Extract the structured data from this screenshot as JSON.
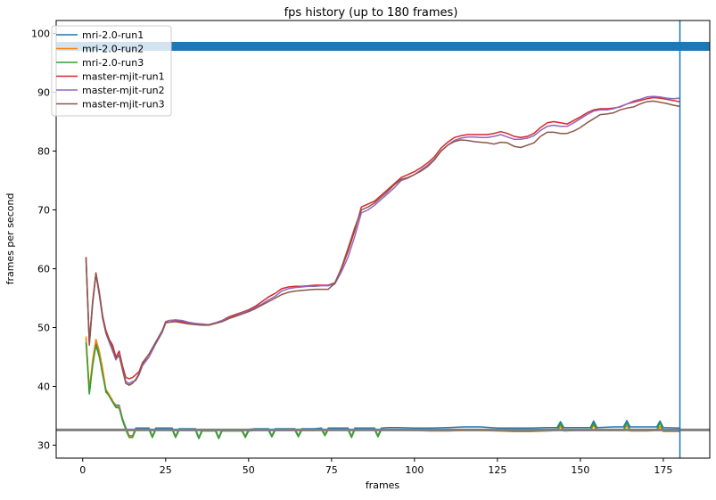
{
  "chart_data": {
    "type": "line",
    "title": "fps history (up to 180 frames)",
    "xlabel": "frames",
    "ylabel": "frames per second",
    "xlim": [
      -8,
      189
    ],
    "ylim": [
      27.8,
      102.2
    ],
    "xticks": [
      0,
      25,
      50,
      75,
      100,
      125,
      150,
      175
    ],
    "yticks": [
      30,
      40,
      50,
      60,
      70,
      80,
      90,
      100
    ],
    "grid": false,
    "legend_position": "top-left",
    "reference_lines": [
      {
        "orientation": "horizontal",
        "y": 97.8,
        "color": "#1f77b4",
        "style": "thick band"
      },
      {
        "orientation": "horizontal",
        "y": 32.6,
        "color": "#7f7f7f",
        "style": "thick line"
      },
      {
        "orientation": "vertical",
        "x": 180,
        "color": "#1f77b4",
        "style": "thin line"
      }
    ],
    "series": [
      {
        "name": "mri-2.0-run1",
        "color": "#1f77b4",
        "x": [
          1,
          2,
          3,
          4,
          5,
          6,
          7,
          8,
          9,
          10,
          11,
          12,
          13,
          14,
          15,
          16,
          18,
          20,
          21,
          22,
          24,
          26,
          27,
          28,
          29,
          31,
          33,
          34,
          35,
          36,
          38,
          40,
          41,
          42,
          44,
          46,
          48,
          49,
          50,
          52,
          54,
          56,
          57,
          58,
          60,
          62,
          64,
          65,
          66,
          68,
          70,
          72,
          73,
          74,
          76,
          78,
          80,
          81,
          82,
          84,
          86,
          88,
          89,
          90,
          92,
          95,
          100,
          105,
          110,
          115,
          120,
          125,
          130,
          135,
          140,
          143,
          144,
          145,
          150,
          153,
          154,
          155,
          160,
          163,
          164,
          165,
          170,
          173,
          174,
          175,
          180
        ],
        "values": [
          48.0,
          38.8,
          44.0,
          47.5,
          45.5,
          42.5,
          39.0,
          38.5,
          37.5,
          36.8,
          36.8,
          34.5,
          33.0,
          31.6,
          31.6,
          32.9,
          32.9,
          32.9,
          31.5,
          32.9,
          32.9,
          32.9,
          32.9,
          31.5,
          32.8,
          32.8,
          32.8,
          32.8,
          31.3,
          32.7,
          32.7,
          32.7,
          31.3,
          32.7,
          32.7,
          32.7,
          32.7,
          31.5,
          32.7,
          32.8,
          32.8,
          32.8,
          31.6,
          32.8,
          32.8,
          32.8,
          32.8,
          31.6,
          32.8,
          32.8,
          32.8,
          32.9,
          31.8,
          32.9,
          32.9,
          32.9,
          32.9,
          31.5,
          32.9,
          32.9,
          32.9,
          32.9,
          31.6,
          32.9,
          33.0,
          33.0,
          32.9,
          32.9,
          33.0,
          33.1,
          33.1,
          32.9,
          32.9,
          32.9,
          33.0,
          33.0,
          34.0,
          33.0,
          33.0,
          33.0,
          34.1,
          33.0,
          33.1,
          33.1,
          34.2,
          33.1,
          33.1,
          33.1,
          34.1,
          33.0,
          32.9
        ]
      },
      {
        "name": "mri-2.0-run2",
        "color": "#ff7f0e",
        "x": [
          1,
          2,
          3,
          4,
          5,
          6,
          7,
          8,
          9,
          10,
          11,
          12,
          13,
          14,
          15,
          16,
          18,
          20,
          21,
          22,
          24,
          26,
          27,
          28,
          29,
          31,
          33,
          34,
          35,
          36,
          38,
          40,
          41,
          42,
          44,
          46,
          48,
          49,
          50,
          52,
          54,
          56,
          57,
          58,
          60,
          62,
          64,
          65,
          66,
          68,
          70,
          72,
          73,
          74,
          76,
          78,
          80,
          81,
          82,
          84,
          86,
          88,
          89,
          90,
          92,
          95,
          100,
          105,
          110,
          115,
          120,
          125,
          130,
          135,
          140,
          143,
          144,
          145,
          150,
          153,
          154,
          155,
          160,
          163,
          164,
          165,
          170,
          173,
          174,
          175,
          180
        ],
        "values": [
          48.5,
          39.5,
          44.5,
          48.0,
          46.0,
          43.0,
          39.5,
          38.6,
          37.6,
          36.5,
          36.6,
          34.3,
          32.8,
          31.5,
          31.5,
          32.7,
          32.7,
          32.7,
          31.4,
          32.7,
          32.7,
          32.7,
          32.7,
          31.4,
          32.6,
          32.6,
          32.6,
          32.6,
          31.2,
          32.5,
          32.5,
          32.5,
          31.2,
          32.5,
          32.5,
          32.5,
          32.5,
          31.4,
          32.5,
          32.6,
          32.6,
          32.6,
          31.5,
          32.6,
          32.6,
          32.6,
          32.6,
          31.5,
          32.6,
          32.6,
          32.6,
          32.7,
          31.7,
          32.7,
          32.7,
          32.7,
          32.7,
          31.4,
          32.7,
          32.7,
          32.7,
          32.7,
          31.5,
          32.6,
          32.6,
          32.6,
          32.5,
          32.4,
          32.4,
          32.5,
          32.5,
          32.4,
          32.3,
          32.3,
          32.4,
          32.5,
          33.2,
          32.4,
          32.5,
          32.5,
          33.3,
          32.5,
          32.5,
          32.5,
          33.3,
          32.4,
          32.4,
          32.5,
          33.2,
          32.3,
          32.3
        ]
      },
      {
        "name": "mri-2.0-run3",
        "color": "#2ca02c",
        "x": [
          1,
          2,
          3,
          4,
          5,
          6,
          7,
          8,
          9,
          10,
          11,
          12,
          13,
          14,
          15,
          16,
          18,
          20,
          21,
          22,
          24,
          26,
          27,
          28,
          29,
          31,
          33,
          34,
          35,
          36,
          38,
          40,
          41,
          42,
          44,
          46,
          48,
          49,
          50,
          52,
          54,
          56,
          57,
          58,
          60,
          62,
          64,
          65,
          66,
          68,
          70,
          72,
          73,
          74,
          76,
          78,
          80,
          81,
          82,
          84,
          86,
          88,
          89,
          90,
          92,
          95,
          100,
          105,
          110,
          115,
          120,
          125,
          130,
          135,
          140,
          143,
          144,
          145,
          150,
          153,
          154,
          155,
          160,
          163,
          164,
          165,
          170,
          173,
          174,
          175,
          180
        ],
        "values": [
          47.5,
          38.7,
          43.5,
          47.0,
          45.0,
          42.0,
          39.2,
          38.3,
          37.3,
          36.4,
          36.3,
          34.2,
          32.6,
          31.3,
          31.3,
          32.6,
          32.6,
          32.6,
          31.3,
          32.6,
          32.6,
          32.6,
          32.6,
          31.3,
          32.5,
          32.5,
          32.5,
          32.5,
          31.1,
          32.4,
          32.4,
          32.4,
          31.1,
          32.4,
          32.4,
          32.4,
          32.4,
          31.3,
          32.4,
          32.5,
          32.5,
          32.5,
          31.4,
          32.5,
          32.5,
          32.5,
          32.5,
          31.4,
          32.5,
          32.5,
          32.5,
          32.6,
          31.6,
          32.6,
          32.6,
          32.6,
          32.6,
          31.3,
          32.6,
          32.6,
          32.6,
          32.6,
          31.4,
          32.6,
          32.6,
          32.6,
          32.6,
          32.5,
          32.5,
          32.6,
          32.6,
          32.5,
          32.4,
          32.4,
          32.5,
          32.6,
          33.6,
          32.5,
          32.6,
          32.6,
          33.7,
          32.6,
          32.6,
          32.6,
          33.8,
          32.6,
          32.6,
          32.6,
          33.8,
          32.5,
          32.5
        ]
      },
      {
        "name": "master-mjit-run1",
        "color": "#d62728",
        "x": [
          1,
          2,
          3,
          4,
          5,
          6,
          7,
          8,
          9,
          10,
          11,
          12,
          13,
          14,
          15,
          16,
          17,
          18,
          20,
          22,
          24,
          25,
          26,
          28,
          30,
          32,
          34,
          36,
          38,
          40,
          42,
          44,
          46,
          48,
          50,
          52,
          54,
          56,
          58,
          60,
          62,
          64,
          66,
          68,
          70,
          72,
          74,
          76,
          78,
          80,
          82,
          84,
          86,
          88,
          90,
          92,
          94,
          96,
          98,
          100,
          102,
          104,
          106,
          108,
          110,
          112,
          114,
          116,
          118,
          120,
          122,
          124,
          126,
          128,
          130,
          132,
          134,
          136,
          138,
          140,
          142,
          144,
          146,
          148,
          150,
          152,
          154,
          156,
          158,
          160,
          162,
          164,
          166,
          168,
          170,
          172,
          174,
          176,
          178,
          180
        ],
        "values": [
          62.0,
          47.5,
          54.5,
          59.3,
          56.0,
          52.0,
          49.5,
          48.0,
          47.0,
          45.0,
          46.0,
          43.5,
          41.5,
          41.3,
          41.5,
          42.0,
          42.5,
          44.0,
          45.5,
          47.5,
          49.5,
          51.0,
          51.2,
          51.2,
          51.0,
          50.8,
          50.6,
          50.5,
          50.5,
          50.8,
          51.2,
          51.8,
          52.2,
          52.6,
          53.0,
          53.6,
          54.4,
          55.2,
          55.8,
          56.6,
          56.9,
          57.0,
          57.0,
          57.1,
          57.2,
          57.2,
          57.2,
          57.6,
          60.0,
          63.0,
          66.5,
          70.5,
          71.0,
          71.5,
          72.5,
          73.5,
          74.5,
          75.5,
          76.0,
          76.5,
          77.2,
          78.0,
          79.0,
          80.5,
          81.5,
          82.3,
          82.6,
          82.8,
          82.8,
          82.8,
          82.8,
          83.0,
          83.3,
          83.0,
          82.5,
          82.3,
          82.5,
          83.0,
          84.0,
          84.8,
          85.0,
          84.8,
          84.6,
          85.2,
          85.8,
          86.5,
          87.0,
          87.2,
          87.2,
          87.3,
          87.5,
          88.0,
          88.3,
          88.6,
          88.9,
          89.1,
          89.0,
          88.8,
          88.6,
          88.4
        ]
      },
      {
        "name": "master-mjit-run2",
        "color": "#9467bd",
        "x": [
          1,
          2,
          3,
          4,
          5,
          6,
          7,
          8,
          9,
          10,
          11,
          12,
          13,
          14,
          15,
          16,
          17,
          18,
          20,
          22,
          24,
          25,
          26,
          28,
          30,
          32,
          34,
          36,
          38,
          40,
          42,
          44,
          46,
          48,
          50,
          52,
          54,
          56,
          58,
          60,
          62,
          64,
          66,
          68,
          70,
          72,
          74,
          76,
          78,
          80,
          82,
          84,
          86,
          88,
          90,
          92,
          94,
          96,
          98,
          100,
          102,
          104,
          106,
          108,
          110,
          112,
          114,
          116,
          118,
          120,
          122,
          124,
          126,
          128,
          130,
          132,
          134,
          136,
          138,
          140,
          142,
          144,
          146,
          148,
          150,
          152,
          154,
          156,
          158,
          160,
          162,
          164,
          166,
          168,
          170,
          172,
          174,
          176,
          178,
          180
        ],
        "values": [
          61.5,
          47.2,
          54.0,
          59.0,
          55.5,
          51.5,
          49.0,
          47.5,
          46.0,
          44.5,
          45.5,
          43.0,
          40.8,
          40.5,
          40.8,
          41.0,
          42.0,
          43.5,
          45.0,
          47.2,
          49.2,
          50.8,
          51.2,
          51.3,
          51.2,
          50.9,
          50.7,
          50.6,
          50.5,
          50.8,
          51.2,
          51.6,
          52.0,
          52.5,
          52.8,
          53.4,
          54.0,
          54.7,
          55.3,
          56.2,
          56.6,
          56.8,
          56.9,
          57.0,
          57.0,
          57.1,
          57.1,
          57.4,
          59.5,
          62.0,
          65.5,
          69.5,
          70.0,
          70.8,
          71.8,
          72.8,
          73.8,
          75.0,
          75.4,
          76.0,
          76.8,
          77.6,
          78.6,
          80.0,
          81.0,
          81.8,
          82.2,
          82.4,
          82.4,
          82.3,
          82.3,
          82.5,
          82.8,
          82.4,
          82.0,
          82.0,
          82.2,
          82.6,
          83.5,
          84.2,
          84.4,
          84.2,
          84.2,
          84.8,
          85.5,
          86.2,
          86.8,
          87.0,
          87.0,
          87.2,
          87.6,
          88.0,
          88.5,
          88.8,
          89.2,
          89.3,
          89.2,
          89.0,
          88.9,
          89.0
        ]
      },
      {
        "name": "master-mjit-run3",
        "color": "#8c564b",
        "x": [
          1,
          2,
          3,
          4,
          5,
          6,
          7,
          8,
          9,
          10,
          11,
          12,
          13,
          14,
          15,
          16,
          17,
          18,
          20,
          22,
          24,
          25,
          26,
          28,
          30,
          32,
          34,
          36,
          38,
          40,
          42,
          44,
          46,
          48,
          50,
          52,
          54,
          56,
          58,
          60,
          62,
          64,
          66,
          68,
          70,
          72,
          74,
          76,
          78,
          80,
          82,
          84,
          86,
          88,
          90,
          92,
          94,
          96,
          98,
          100,
          102,
          104,
          106,
          108,
          110,
          112,
          114,
          116,
          118,
          120,
          122,
          124,
          126,
          128,
          130,
          132,
          134,
          136,
          138,
          140,
          142,
          144,
          146,
          148,
          150,
          152,
          154,
          156,
          158,
          160,
          162,
          164,
          166,
          168,
          170,
          172,
          174,
          176,
          178,
          180
        ],
        "values": [
          61.8,
          47.0,
          54.2,
          59.2,
          55.8,
          51.8,
          49.2,
          47.8,
          46.5,
          44.8,
          45.2,
          42.8,
          40.5,
          40.2,
          40.5,
          41.2,
          42.2,
          43.8,
          45.5,
          47.5,
          49.5,
          50.8,
          50.9,
          51.0,
          50.8,
          50.6,
          50.5,
          50.4,
          50.4,
          50.7,
          51.0,
          51.5,
          51.9,
          52.3,
          52.7,
          53.2,
          53.8,
          54.4,
          55.0,
          55.6,
          56.0,
          56.2,
          56.3,
          56.4,
          56.5,
          56.5,
          56.5,
          57.5,
          60.2,
          63.5,
          67.0,
          70.0,
          70.5,
          71.2,
          72.2,
          73.2,
          74.3,
          75.2,
          75.5,
          76.0,
          76.6,
          77.4,
          78.5,
          80.0,
          81.0,
          81.6,
          81.9,
          81.8,
          81.6,
          81.5,
          81.4,
          81.2,
          81.5,
          81.4,
          80.8,
          80.6,
          81.0,
          81.4,
          82.5,
          83.2,
          83.2,
          83.0,
          83.0,
          83.4,
          84.0,
          84.8,
          85.5,
          86.2,
          86.3,
          86.5,
          87.0,
          87.3,
          87.5,
          88.0,
          88.4,
          88.5,
          88.3,
          88.1,
          87.8,
          87.6
        ]
      }
    ]
  }
}
